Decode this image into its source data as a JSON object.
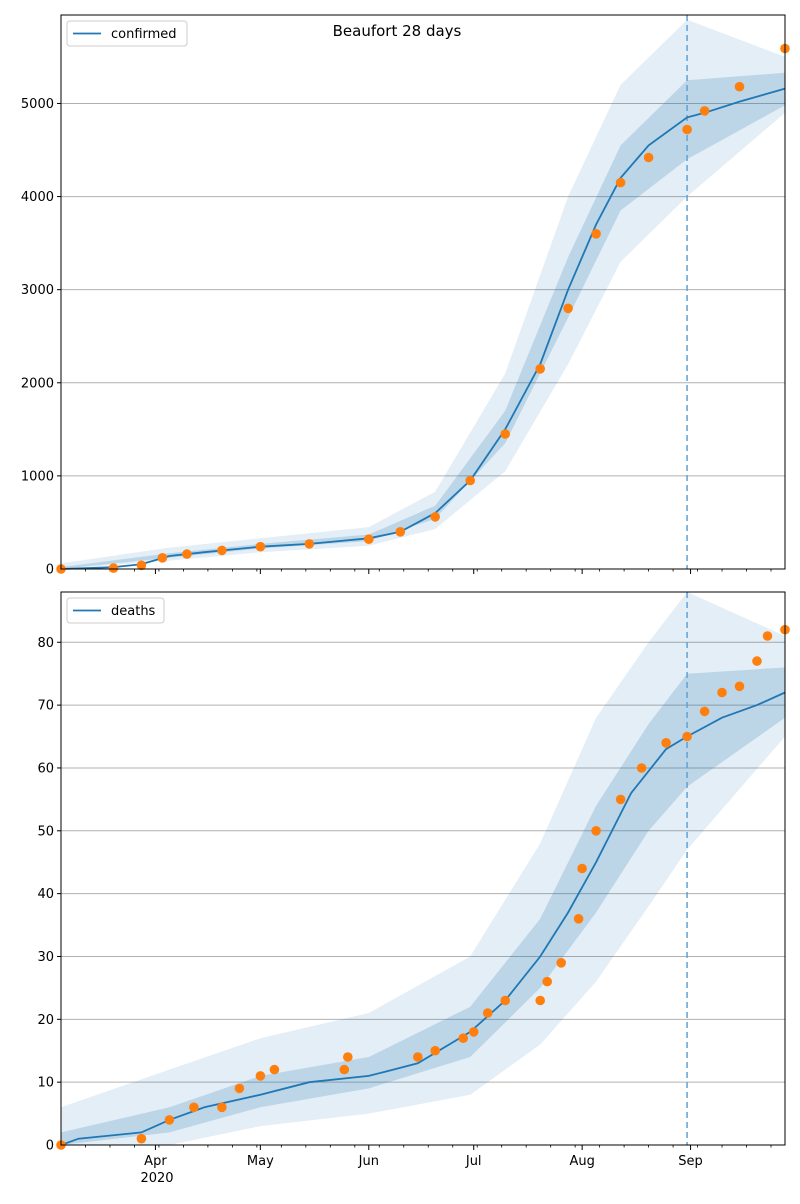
{
  "figure": {
    "title": "Beaufort 28 days",
    "year_label": "2020"
  },
  "colors": {
    "model": "#1f77b4",
    "observed": "#ff7f0e",
    "band": "#1f77b4",
    "grid": "#b0b0b0",
    "forecast_line": "#5fa2d6"
  },
  "chart_data": [
    {
      "type": "line",
      "legend": "confirmed",
      "legend_position": "top-left",
      "x_type": "date",
      "xlim": [
        "2020-03-05",
        "2020-09-28"
      ],
      "ylim": [
        0,
        5950
      ],
      "yticks": [
        0,
        1000,
        2000,
        3000,
        4000,
        5000
      ],
      "month_ticks": [
        {
          "date": "2020-04-01",
          "label": "Apr"
        },
        {
          "date": "2020-05-01",
          "label": "May"
        },
        {
          "date": "2020-06-01",
          "label": "Jun"
        },
        {
          "date": "2020-07-01",
          "label": "Jul"
        },
        {
          "date": "2020-08-01",
          "label": "Aug"
        },
        {
          "date": "2020-09-01",
          "label": "Sep"
        }
      ],
      "grid": "horizontal",
      "forecast_start": "2020-08-31",
      "model": [
        [
          "2020-03-05",
          0
        ],
        [
          "2020-03-20",
          20
        ],
        [
          "2020-03-28",
          50
        ],
        [
          "2020-04-05",
          140
        ],
        [
          "2020-04-15",
          180
        ],
        [
          "2020-05-01",
          240
        ],
        [
          "2020-05-15",
          270
        ],
        [
          "2020-06-01",
          330
        ],
        [
          "2020-06-10",
          400
        ],
        [
          "2020-06-20",
          600
        ],
        [
          "2020-06-30",
          950
        ],
        [
          "2020-07-10",
          1500
        ],
        [
          "2020-07-20",
          2200
        ],
        [
          "2020-07-28",
          3000
        ],
        [
          "2020-08-05",
          3700
        ],
        [
          "2020-08-12",
          4200
        ],
        [
          "2020-08-20",
          4550
        ],
        [
          "2020-08-31",
          4850
        ],
        [
          "2020-09-05",
          4900
        ],
        [
          "2020-09-15",
          5020
        ],
        [
          "2020-09-28",
          5160
        ]
      ],
      "band_inner": [
        [
          "2020-03-05",
          0,
          20
        ],
        [
          "2020-04-05",
          120,
          170
        ],
        [
          "2020-05-01",
          220,
          270
        ],
        [
          "2020-06-01",
          300,
          370
        ],
        [
          "2020-06-20",
          540,
          680
        ],
        [
          "2020-07-10",
          1350,
          1700
        ],
        [
          "2020-07-28",
          2700,
          3350
        ],
        [
          "2020-08-12",
          3850,
          4550
        ],
        [
          "2020-08-31",
          4400,
          5250
        ],
        [
          "2020-09-28",
          4980,
          5330
        ]
      ],
      "band_outer": [
        [
          "2020-03-05",
          0,
          60
        ],
        [
          "2020-04-05",
          90,
          230
        ],
        [
          "2020-05-01",
          180,
          330
        ],
        [
          "2020-06-01",
          250,
          450
        ],
        [
          "2020-06-20",
          430,
          830
        ],
        [
          "2020-07-10",
          1050,
          2100
        ],
        [
          "2020-07-28",
          2200,
          4000
        ],
        [
          "2020-08-12",
          3300,
          5200
        ],
        [
          "2020-08-31",
          4000,
          5900
        ],
        [
          "2020-09-28",
          4900,
          5500
        ]
      ],
      "observed": [
        [
          "2020-03-05",
          0
        ],
        [
          "2020-03-20",
          10
        ],
        [
          "2020-03-28",
          40
        ],
        [
          "2020-04-03",
          120
        ],
        [
          "2020-04-10",
          160
        ],
        [
          "2020-04-20",
          200
        ],
        [
          "2020-05-01",
          240
        ],
        [
          "2020-05-15",
          270
        ],
        [
          "2020-06-01",
          320
        ],
        [
          "2020-06-10",
          400
        ],
        [
          "2020-06-20",
          560
        ],
        [
          "2020-06-30",
          950
        ],
        [
          "2020-07-10",
          1450
        ],
        [
          "2020-07-20",
          2150
        ],
        [
          "2020-07-28",
          2800
        ],
        [
          "2020-08-05",
          3600
        ],
        [
          "2020-08-12",
          4150
        ],
        [
          "2020-08-20",
          4420
        ],
        [
          "2020-08-31",
          4720
        ],
        [
          "2020-09-05",
          4920
        ],
        [
          "2020-09-15",
          5180
        ],
        [
          "2020-09-28",
          5590
        ]
      ]
    },
    {
      "type": "line",
      "legend": "deaths",
      "legend_position": "top-left",
      "x_type": "date",
      "xlim": [
        "2020-03-05",
        "2020-09-28"
      ],
      "ylim": [
        0,
        88
      ],
      "yticks": [
        0,
        10,
        20,
        30,
        40,
        50,
        60,
        70,
        80
      ],
      "month_ticks": [
        {
          "date": "2020-04-01",
          "label": "Apr"
        },
        {
          "date": "2020-05-01",
          "label": "May"
        },
        {
          "date": "2020-06-01",
          "label": "Jun"
        },
        {
          "date": "2020-07-01",
          "label": "Jul"
        },
        {
          "date": "2020-08-01",
          "label": "Aug"
        },
        {
          "date": "2020-09-01",
          "label": "Sep"
        }
      ],
      "grid": "horizontal",
      "forecast_start": "2020-08-31",
      "model": [
        [
          "2020-03-05",
          0
        ],
        [
          "2020-03-10",
          1
        ],
        [
          "2020-03-28",
          2
        ],
        [
          "2020-04-05",
          4
        ],
        [
          "2020-04-15",
          6
        ],
        [
          "2020-05-01",
          8
        ],
        [
          "2020-05-15",
          10
        ],
        [
          "2020-06-01",
          11
        ],
        [
          "2020-06-15",
          13
        ],
        [
          "2020-06-30",
          18
        ],
        [
          "2020-07-10",
          23
        ],
        [
          "2020-07-20",
          30
        ],
        [
          "2020-07-28",
          37
        ],
        [
          "2020-08-05",
          45
        ],
        [
          "2020-08-15",
          56
        ],
        [
          "2020-08-25",
          63
        ],
        [
          "2020-08-31",
          65
        ],
        [
          "2020-09-10",
          68
        ],
        [
          "2020-09-20",
          70
        ],
        [
          "2020-09-28",
          72
        ]
      ],
      "band_inner": [
        [
          "2020-03-05",
          0,
          2
        ],
        [
          "2020-04-05",
          2,
          6
        ],
        [
          "2020-05-01",
          6,
          11
        ],
        [
          "2020-06-01",
          9,
          14
        ],
        [
          "2020-06-30",
          14,
          22
        ],
        [
          "2020-07-20",
          25,
          36
        ],
        [
          "2020-08-05",
          37,
          54
        ],
        [
          "2020-08-20",
          50,
          67
        ],
        [
          "2020-08-31",
          57,
          75
        ],
        [
          "2020-09-28",
          68,
          76
        ]
      ],
      "band_outer": [
        [
          "2020-03-05",
          0,
          6
        ],
        [
          "2020-04-05",
          0,
          12
        ],
        [
          "2020-05-01",
          3,
          17
        ],
        [
          "2020-06-01",
          5,
          21
        ],
        [
          "2020-06-30",
          8,
          30
        ],
        [
          "2020-07-20",
          16,
          48
        ],
        [
          "2020-08-05",
          26,
          68
        ],
        [
          "2020-08-20",
          38,
          80
        ],
        [
          "2020-08-31",
          47,
          88
        ],
        [
          "2020-09-28",
          65,
          81
        ]
      ],
      "observed": [
        [
          "2020-03-05",
          0
        ],
        [
          "2020-03-28",
          1
        ],
        [
          "2020-04-05",
          4
        ],
        [
          "2020-04-12",
          6
        ],
        [
          "2020-04-20",
          6
        ],
        [
          "2020-04-25",
          9
        ],
        [
          "2020-05-01",
          11
        ],
        [
          "2020-05-05",
          12
        ],
        [
          "2020-05-25",
          12
        ],
        [
          "2020-05-26",
          14
        ],
        [
          "2020-06-15",
          14
        ],
        [
          "2020-06-20",
          15
        ],
        [
          "2020-06-28",
          17
        ],
        [
          "2020-07-01",
          18
        ],
        [
          "2020-07-05",
          21
        ],
        [
          "2020-07-10",
          23
        ],
        [
          "2020-07-20",
          23
        ],
        [
          "2020-07-22",
          26
        ],
        [
          "2020-07-26",
          29
        ],
        [
          "2020-07-31",
          36
        ],
        [
          "2020-08-01",
          44
        ],
        [
          "2020-08-05",
          50
        ],
        [
          "2020-08-12",
          55
        ],
        [
          "2020-08-18",
          60
        ],
        [
          "2020-08-25",
          64
        ],
        [
          "2020-08-31",
          65
        ],
        [
          "2020-09-05",
          69
        ],
        [
          "2020-09-10",
          72
        ],
        [
          "2020-09-15",
          73
        ],
        [
          "2020-09-20",
          77
        ],
        [
          "2020-09-23",
          81
        ],
        [
          "2020-09-28",
          82
        ]
      ]
    }
  ]
}
